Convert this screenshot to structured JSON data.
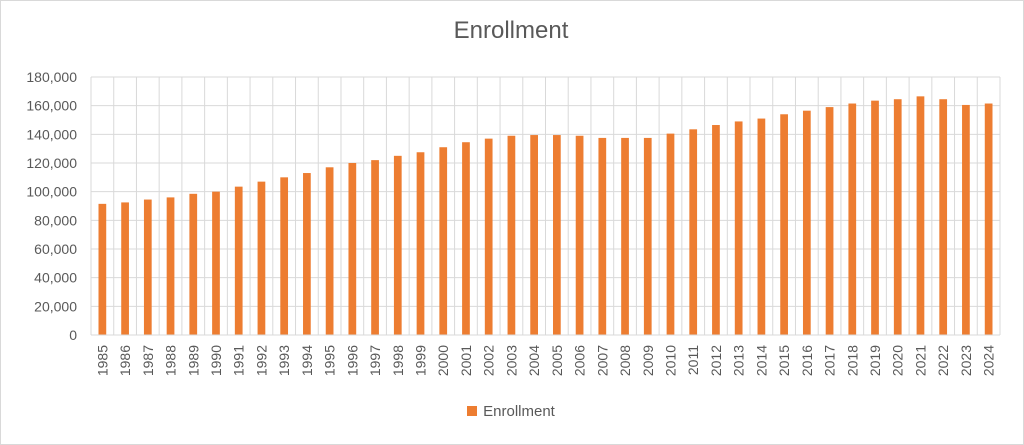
{
  "chart_data": {
    "type": "bar",
    "title": "Enrollment",
    "xlabel": "",
    "ylabel": "",
    "ylim": [
      0,
      180000
    ],
    "y_ticks": [
      "0",
      "20,000",
      "40,000",
      "60,000",
      "80,000",
      "100,000",
      "120,000",
      "140,000",
      "160,000",
      "180,000"
    ],
    "y_tick_values": [
      0,
      20000,
      40000,
      60000,
      80000,
      100000,
      120000,
      140000,
      160000,
      180000
    ],
    "grid": true,
    "legend_position": "bottom",
    "categories": [
      "1985",
      "1986",
      "1987",
      "1988",
      "1989",
      "1990",
      "1991",
      "1992",
      "1993",
      "1994",
      "1995",
      "1996",
      "1997",
      "1998",
      "1999",
      "2000",
      "2001",
      "2002",
      "2003",
      "2004",
      "2005",
      "2006",
      "2007",
      "2008",
      "2009",
      "2010",
      "2011",
      "2012",
      "2013",
      "2014",
      "2015",
      "2016",
      "2017",
      "2018",
      "2019",
      "2020",
      "2021",
      "2022",
      "2023",
      "2024"
    ],
    "series": [
      {
        "name": "Enrollment",
        "color": "#ed7d31",
        "values": [
          91500,
          92500,
          94500,
          96000,
          98500,
          100000,
          103500,
          107000,
          110000,
          113000,
          117000,
          120000,
          122000,
          125000,
          127500,
          131000,
          134500,
          137000,
          139000,
          139500,
          139500,
          139000,
          137500,
          137500,
          137500,
          140500,
          143500,
          146500,
          149000,
          151000,
          154000,
          156500,
          159000,
          161500,
          163500,
          164500,
          166500,
          164500,
          160500,
          161500
        ]
      }
    ]
  }
}
